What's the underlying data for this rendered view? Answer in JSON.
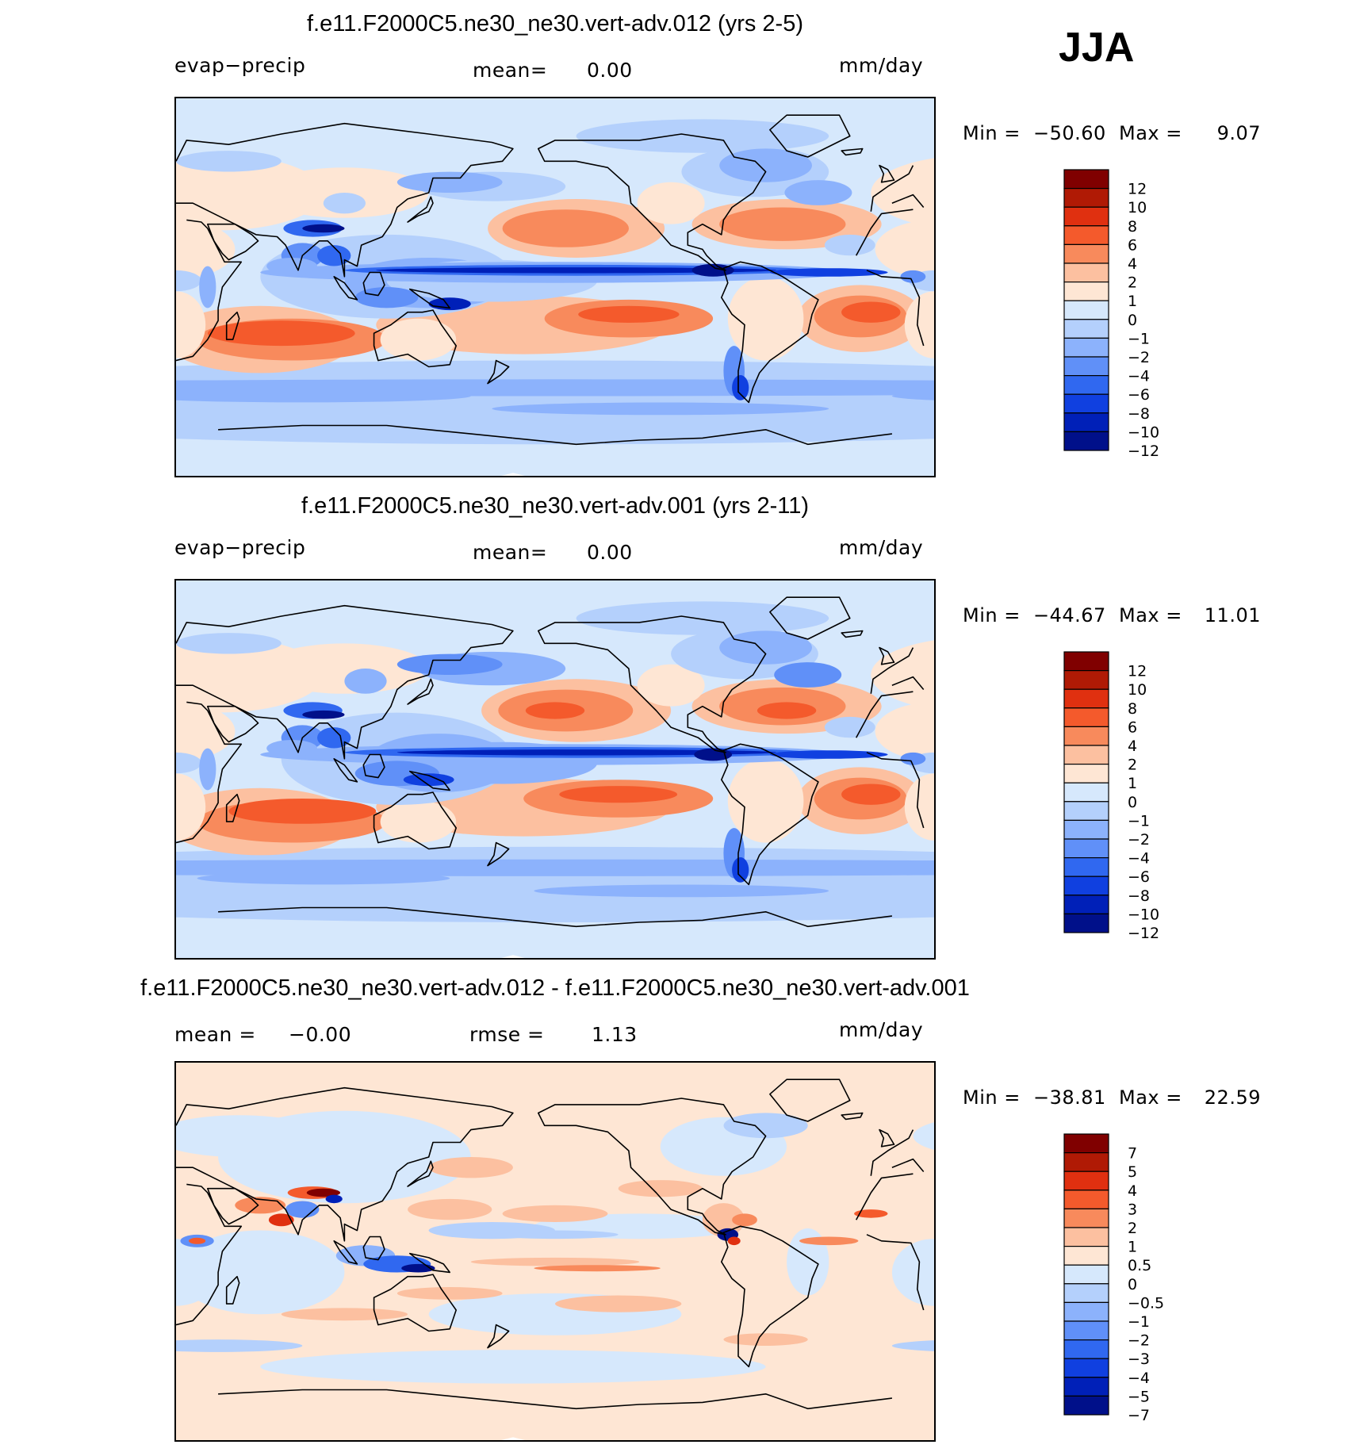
{
  "season": "JJA",
  "chart_data": [
    {
      "type": "heatmap",
      "title": "f.e11.F2000C5.ne30_ne30.vert-adv.012 (yrs 2-5)",
      "variable": "evap−precip",
      "mean_label": "mean=",
      "mean_value": "0.00",
      "units": "mm/day",
      "min_label": "Min = ",
      "min_value": "−50.60",
      "max_label": "Max = ",
      "max_value": "9.07",
      "colorbar_levels": [
        "12",
        "10",
        "8",
        "6",
        "4",
        "2",
        "1",
        "0",
        "−1",
        "−2",
        "−4",
        "−6",
        "−8",
        "−10",
        "−12"
      ]
    },
    {
      "type": "heatmap",
      "title": "f.e11.F2000C5.ne30_ne30.vert-adv.001 (yrs 2-11)",
      "variable": "evap−precip",
      "mean_label": "mean=",
      "mean_value": "0.00",
      "units": "mm/day",
      "min_label": "Min = ",
      "min_value": "−44.67",
      "max_label": "Max = ",
      "max_value": "11.01",
      "colorbar_levels": [
        "12",
        "10",
        "8",
        "6",
        "4",
        "2",
        "1",
        "0",
        "−1",
        "−2",
        "−4",
        "−6",
        "−8",
        "−10",
        "−12"
      ]
    },
    {
      "type": "heatmap",
      "title": "f.e11.F2000C5.ne30_ne30.vert-adv.012 - f.e11.F2000C5.ne30_ne30.vert-adv.001",
      "mean_label": "mean = ",
      "mean_value": "−0.00",
      "rmse_label": "rmse = ",
      "rmse_value": "1.13",
      "units": "mm/day",
      "min_label": "Min = ",
      "min_value": "−38.81",
      "max_label": "Max = ",
      "max_value": "22.59",
      "colorbar_levels": [
        "7",
        "5",
        "4",
        "3",
        "2",
        "1",
        "0.5",
        "0",
        "−0.5",
        "−1",
        "−2",
        "−3",
        "−4",
        "−5",
        "−7"
      ]
    }
  ],
  "colors": {
    "palette": [
      "#800000",
      "#b01a05",
      "#e03010",
      "#f45a2c",
      "#f88a5c",
      "#fcc0a0",
      "#fee6d4",
      "#d6e8fc",
      "#b4d0fc",
      "#8cb2fc",
      "#6090f8",
      "#3068f0",
      "#1040e0",
      "#0020b8",
      "#00108a"
    ],
    "land_outline": "#000000"
  }
}
